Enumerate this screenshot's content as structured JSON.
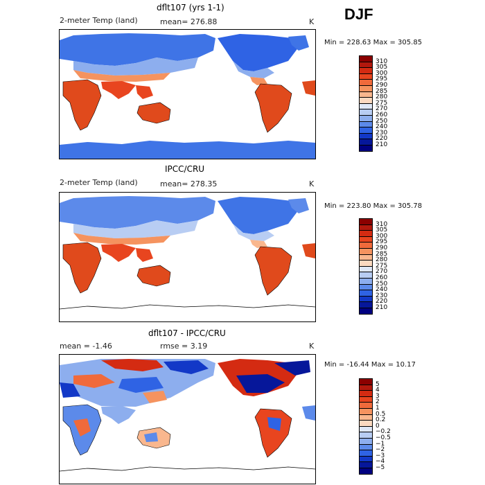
{
  "season": "DJF",
  "chart_data": [
    {
      "type": "heatmap",
      "title": "dflt107 (yrs 1-1)",
      "field": "2-meter Temp (land)",
      "mean_label": "mean= 276.88",
      "units": "K",
      "minmax_label": "Min = 228.63 Max = 305.85",
      "min": 228.63,
      "max": 305.85,
      "mean": 276.88,
      "levels": [
        "310",
        "305",
        "300",
        "295",
        "290",
        "285",
        "280",
        "275",
        "270",
        "260",
        "250",
        "240",
        "230",
        "220",
        "210"
      ],
      "colors": [
        "#8b0000",
        "#b2180d",
        "#d42b12",
        "#e8451f",
        "#f06a3b",
        "#f5935f",
        "#f9b78e",
        "#fbd9c0",
        "#dfe8f7",
        "#b8cdf3",
        "#8daeee",
        "#5c8aea",
        "#2f63e4",
        "#1238c7",
        "#06179a",
        "#000080"
      ]
    },
    {
      "type": "heatmap",
      "title": "IPCC/CRU",
      "field": "2-meter Temp (land)",
      "mean_label": "mean= 278.35",
      "units": "K",
      "minmax_label": "Min = 223.80 Max = 305.78",
      "min": 223.8,
      "max": 305.78,
      "mean": 278.35,
      "levels": [
        "310",
        "305",
        "300",
        "295",
        "290",
        "285",
        "280",
        "275",
        "270",
        "260",
        "250",
        "240",
        "230",
        "220",
        "210"
      ],
      "colors": [
        "#8b0000",
        "#b2180d",
        "#d42b12",
        "#e8451f",
        "#f06a3b",
        "#f5935f",
        "#f9b78e",
        "#fbd9c0",
        "#dfe8f7",
        "#b8cdf3",
        "#8daeee",
        "#5c8aea",
        "#2f63e4",
        "#1238c7",
        "#06179a",
        "#000080"
      ]
    },
    {
      "type": "heatmap",
      "title": "dflt107 - IPCC/CRU",
      "mean_label": "mean =  -1.46",
      "rmse_label": "rmse =   3.19",
      "units": "K",
      "minmax_label": "Min = -16.44 Max =  10.17",
      "min": -16.44,
      "max": 10.17,
      "mean": -1.46,
      "rmse": 3.19,
      "levels": [
        "5",
        "4",
        "3",
        "2",
        "1",
        "0.5",
        "0.2",
        "0",
        "−0.2",
        "−0.5",
        "−1",
        "−2",
        "−3",
        "−4",
        "−5"
      ],
      "colors": [
        "#8b0000",
        "#b2180d",
        "#d42b12",
        "#e8451f",
        "#f06a3b",
        "#f5935f",
        "#f9b78e",
        "#fbd9c0",
        "#dfe8f7",
        "#b8cdf3",
        "#8daeee",
        "#5c8aea",
        "#2f63e4",
        "#1238c7",
        "#06179a",
        "#000080"
      ]
    }
  ]
}
